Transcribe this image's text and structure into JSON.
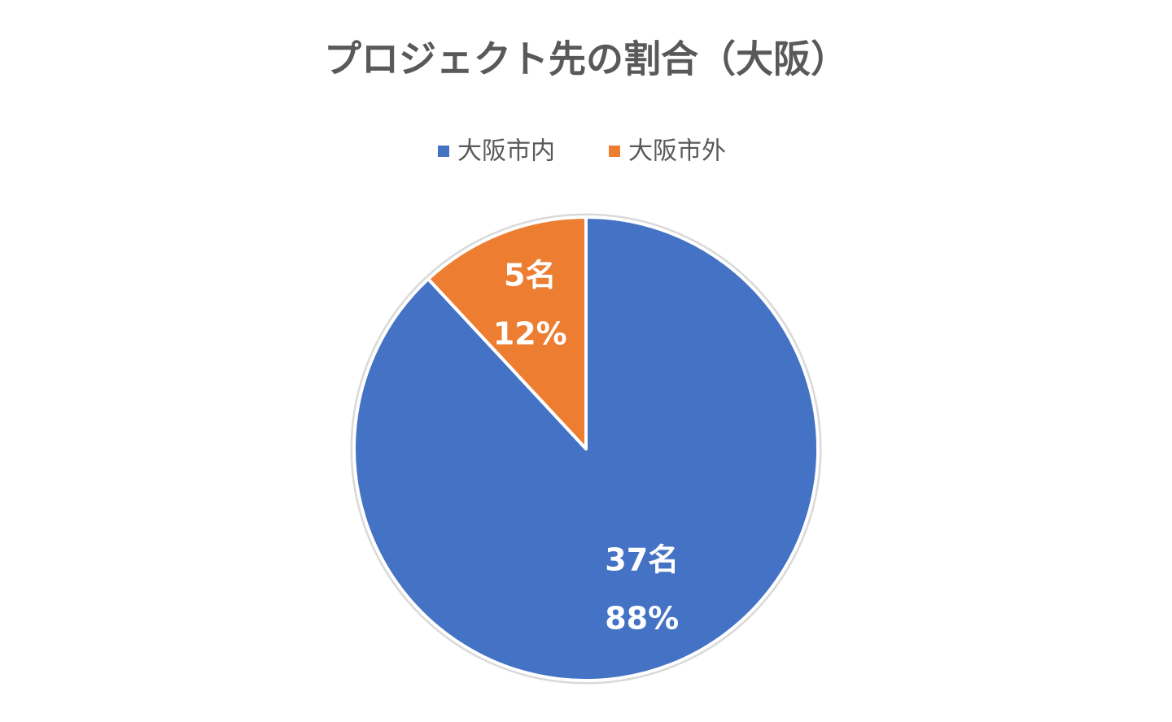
{
  "chart_data": {
    "type": "pie",
    "title": "プロジェクト先の割合（大阪）",
    "categories": [
      "大阪市内",
      "大阪市外"
    ],
    "values": [
      37,
      5
    ],
    "value_labels": [
      "37名",
      "5名"
    ],
    "percent_labels": [
      "88%",
      "12%"
    ],
    "colors": [
      "#4472c4",
      "#ed7d31"
    ],
    "legend": "top"
  }
}
